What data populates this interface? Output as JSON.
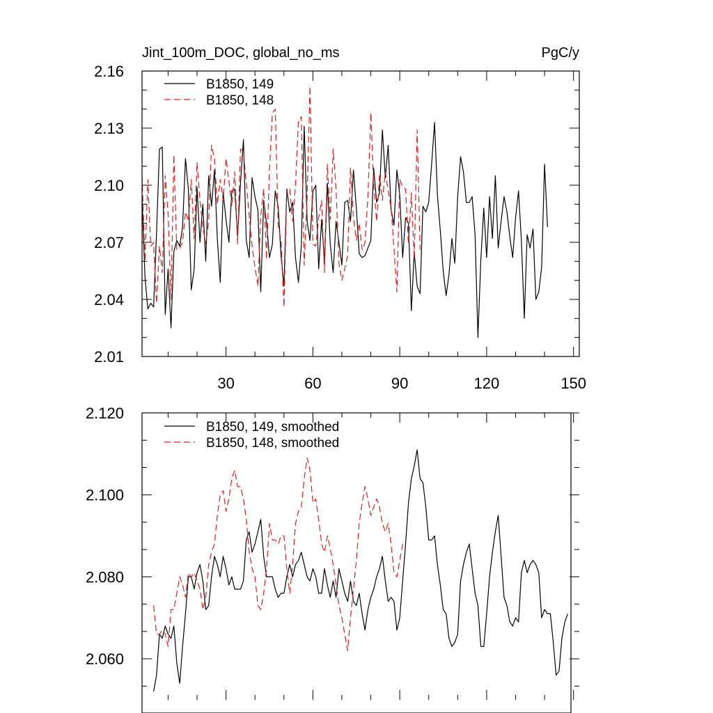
{
  "top_panel": {
    "title_left": "Jint_100m_DOC, global_no_ms",
    "title_right": "PgC/y",
    "legend": [
      "B1850, 149",
      "B1850, 148"
    ]
  },
  "bottom_panel": {
    "legend": [
      "B1850, 149, smoothed",
      "B1850, 148, smoothed"
    ]
  },
  "chart_data": [
    {
      "type": "line",
      "title": "Jint_100m_DOC, global_no_ms",
      "units": "PgC/y",
      "xlim": [
        1,
        152
      ],
      "ylim": [
        2.01,
        2.16
      ],
      "xticks": [
        30,
        60,
        90,
        120,
        150
      ],
      "yticks": [
        2.01,
        2.04,
        2.07,
        2.1,
        2.13,
        2.16
      ],
      "ytick_labels": [
        "2.01",
        "2.04",
        "2.07",
        "2.10",
        "2.13",
        "2.16"
      ],
      "legend_position": "top-left",
      "series": [
        {
          "name": "B1850, 149",
          "color": "#000000",
          "dash": "solid",
          "x_start": 1,
          "values": [
            2.093,
            2.052,
            2.035,
            2.038,
            2.036,
            2.075,
            2.119,
            2.12,
            2.032,
            2.056,
            2.025,
            2.065,
            2.071,
            2.068,
            2.078,
            2.114,
            2.098,
            2.045,
            2.056,
            2.099,
            2.07,
            2.09,
            2.06,
            2.105,
            2.089,
            2.108,
            2.072,
            2.049,
            2.096,
            2.082,
            2.07,
            2.097,
            2.098,
            2.073,
            2.101,
            2.124,
            2.071,
            2.062,
            2.104,
            2.094,
            2.087,
            2.044,
            2.092,
            2.08,
            2.062,
            2.069,
            2.097,
            2.089,
            2.063,
            2.047,
            2.098,
            2.086,
            2.091,
            2.062,
            2.049,
            2.068,
            2.131,
            2.081,
            2.071,
            2.097,
            2.1,
            2.056,
            2.082,
            2.06,
            2.101,
            2.069,
            2.054,
            2.081,
            2.07,
            2.058,
            2.091,
            2.092,
            2.081,
            2.108,
            2.088,
            2.064,
            2.062,
            2.063,
            2.067,
            2.071,
            2.109,
            2.091,
            2.096,
            2.129,
            2.104,
            2.121,
            2.087,
            2.079,
            2.108,
            2.095,
            2.062,
            2.083,
            2.08,
            2.034,
            2.065,
            2.047,
            2.043,
            2.089,
            2.086,
            2.091,
            2.111,
            2.133,
            2.095,
            2.076,
            2.055,
            2.042,
            2.053,
            2.072,
            2.059,
            2.094,
            2.115,
            2.107,
            2.091,
            2.091,
            2.094,
            2.074,
            2.02,
            2.061,
            2.088,
            2.062,
            2.094,
            2.072,
            2.105,
            2.067,
            2.081,
            2.094,
            2.086,
            2.073,
            2.062,
            2.083,
            2.097,
            2.071,
            2.03,
            2.074,
            2.067,
            2.077,
            2.04,
            2.044,
            2.057,
            2.111,
            2.078
          ]
        },
        {
          "name": "B1850, 148",
          "color": "#e41a1c",
          "dash": "dashed",
          "x_start": 1,
          "values": [
            2.105,
            2.06,
            2.103,
            2.068,
            2.07,
            2.038,
            2.068,
            2.054,
            2.105,
            2.085,
            2.04,
            2.116,
            2.066,
            2.067,
            2.07,
            2.086,
            2.081,
            2.103,
            2.072,
            2.112,
            2.092,
            2.078,
            2.069,
            2.081,
            2.121,
            2.114,
            2.09,
            2.103,
            2.092,
            2.114,
            2.102,
            2.089,
            2.107,
            2.069,
            2.119,
            2.118,
            2.101,
            2.084,
            2.068,
            2.057,
            2.047,
            2.084,
            2.098,
            2.061,
            2.108,
            2.138,
            2.14,
            2.079,
            2.071,
            2.036,
            2.097,
            2.098,
            2.081,
            2.1,
            2.134,
            2.136,
            2.058,
            2.094,
            2.152,
            2.069,
            2.068,
            2.083,
            2.092,
            2.054,
            2.111,
            2.082,
            2.119,
            2.098,
            2.059,
            2.05,
            2.056,
            2.063,
            2.109,
            2.083,
            2.071,
            2.08,
            2.066,
            2.07,
            2.094,
            2.138,
            2.1,
            2.081,
            2.105,
            2.092,
            2.107,
            2.097,
            2.088,
            2.067,
            2.044,
            2.103,
            2.099,
            2.098,
            2.069,
            2.096,
            2.061,
            2.129,
            2.066
          ]
        }
      ]
    },
    {
      "type": "line",
      "xlim": [
        1,
        152
      ],
      "ylim": [
        2.05,
        2.12
      ],
      "xticks": [
        30,
        60,
        90,
        120,
        150
      ],
      "yticks": [
        2.06,
        2.08,
        2.1,
        2.12
      ],
      "ytick_labels": [
        "2.060",
        "2.080",
        "2.100",
        "2.120"
      ],
      "legend_position": "top-left",
      "series": [
        {
          "name": "B1850, 149, smoothed",
          "color": "#000000",
          "dash": "solid",
          "x_start": 5,
          "values": [
            2.052,
            2.056,
            2.066,
            2.065,
            2.068,
            2.066,
            2.065,
            2.068,
            2.059,
            2.054,
            2.063,
            2.071,
            2.08,
            2.08,
            2.077,
            2.081,
            2.083,
            2.079,
            2.072,
            2.073,
            2.08,
            2.085,
            2.083,
            2.08,
            2.085,
            2.082,
            2.078,
            2.08,
            2.077,
            2.077,
            2.077,
            2.079,
            2.089,
            2.091,
            2.086,
            2.088,
            2.091,
            2.094,
            2.085,
            2.08,
            2.08,
            2.08,
            2.077,
            2.075,
            2.076,
            2.076,
            2.08,
            2.083,
            2.08,
            2.083,
            2.084,
            2.086,
            2.083,
            2.08,
            2.079,
            2.082,
            2.08,
            2.076,
            2.076,
            2.082,
            2.078,
            2.075,
            2.079,
            2.075,
            2.082,
            2.079,
            2.076,
            2.074,
            2.079,
            2.074,
            2.073,
            2.076,
            2.071,
            2.067,
            2.072,
            2.075,
            2.077,
            2.08,
            2.082,
            2.085,
            2.079,
            2.074,
            2.075,
            2.074,
            2.067,
            2.07,
            2.079,
            2.088,
            2.098,
            2.104,
            2.107,
            2.111,
            2.104,
            2.103,
            2.097,
            2.089,
            2.089,
            2.09,
            2.083,
            2.078,
            2.072,
            2.071,
            2.065,
            2.063,
            2.064,
            2.066,
            2.079,
            2.083,
            2.086,
            2.088,
            2.082,
            2.076,
            2.073,
            2.063,
            2.063,
            2.071,
            2.08,
            2.086,
            2.091,
            2.095,
            2.085,
            2.075,
            2.073,
            2.069,
            2.068,
            2.07,
            2.069,
            2.081,
            2.084,
            2.081,
            2.083,
            2.084,
            2.083,
            2.081,
            2.07,
            2.072,
            2.071,
            2.071,
            2.064,
            2.056,
            2.057,
            2.065,
            2.069,
            2.071
          ]
        },
        {
          "name": "B1850, 148, smoothed",
          "color": "#e41a1c",
          "dash": "dashed",
          "x_start": 5,
          "values": [
            2.073,
            2.066,
            2.066,
            2.067,
            2.066,
            2.063,
            2.072,
            2.072,
            2.076,
            2.08,
            2.078,
            2.075,
            2.081,
            2.08,
            2.081,
            2.079,
            2.077,
            2.072,
            2.075,
            2.083,
            2.086,
            2.088,
            2.095,
            2.1,
            2.101,
            2.096,
            2.099,
            2.104,
            2.106,
            2.102,
            2.102,
            2.099,
            2.094,
            2.086,
            2.082,
            2.08,
            2.073,
            2.072,
            2.076,
            2.082,
            2.093,
            2.089,
            2.089,
            2.088,
            2.09,
            2.09,
            2.082,
            2.076,
            2.083,
            2.093,
            2.096,
            2.097,
            2.104,
            2.109,
            2.106,
            2.098,
            2.099,
            2.094,
            2.088,
            2.086,
            2.09,
            2.087,
            2.083,
            2.078,
            2.073,
            2.07,
            2.066,
            2.062,
            2.07,
            2.077,
            2.084,
            2.093,
            2.098,
            2.102,
            2.099,
            2.095,
            2.097,
            2.099,
            2.097,
            2.093,
            2.091,
            2.093,
            2.088,
            2.081,
            2.08,
            2.084,
            2.088
          ]
        }
      ]
    }
  ]
}
